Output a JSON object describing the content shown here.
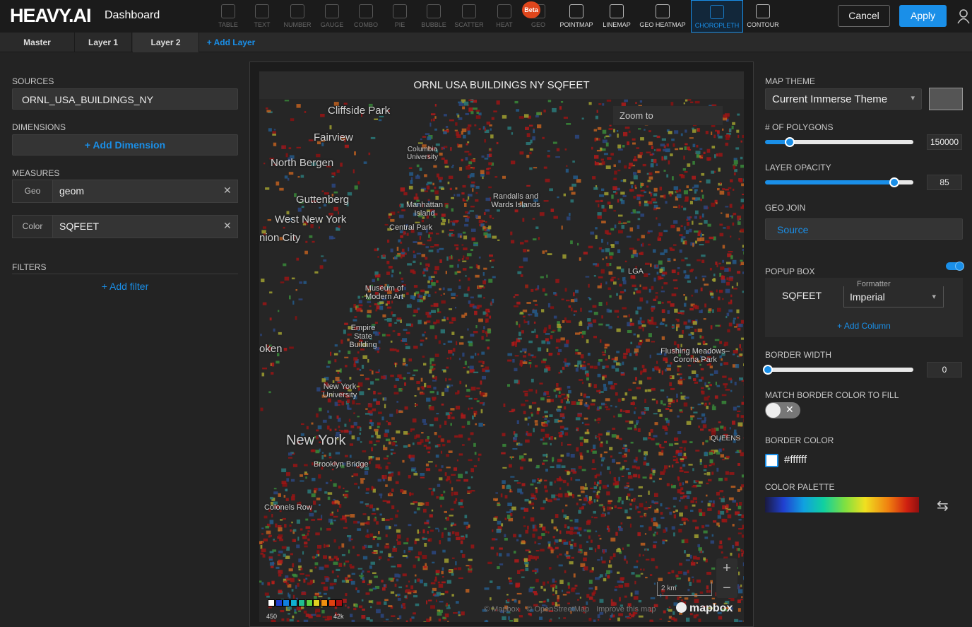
{
  "header": {
    "logo": "HEAVY.AI",
    "title": "Dashboard",
    "beta_badge": "Beta",
    "chart_types": [
      "TABLE",
      "TEXT",
      "NUMBER",
      "GAUGE",
      "COMBO",
      "PIE",
      "BUBBLE",
      "SCATTER",
      "HEAT",
      "GEO",
      "POINTMAP",
      "LINEMAP",
      "GEO HEATMAP",
      "CHOROPLETH",
      "CONTOUR"
    ],
    "cancel": "Cancel",
    "apply": "Apply"
  },
  "tabs": [
    "Master",
    "Layer 1",
    "Layer 2",
    "+ Add Layer"
  ],
  "left_panel": {
    "sources_label": "SOURCES",
    "source": "ORNL_USA_BUILDINGS_NY",
    "dimensions_label": "DIMENSIONS",
    "add_dimension": "+ Add Dimension",
    "measures_label": "MEASURES",
    "measures": [
      {
        "key": "Geo",
        "value": "geom"
      },
      {
        "key": "Color",
        "value": "SQFEET"
      }
    ],
    "filters_label": "FILTERS",
    "add_filter": "+ Add filter"
  },
  "map": {
    "title": "ORNL USA BUILDINGS NY SQFEET",
    "zoom_to": "Zoom to",
    "labels": [
      "Cliffside Park",
      "Fairview",
      "North Bergen",
      "Columbia University",
      "Guttenberg",
      "West New York",
      "Randalls and Wards Islands",
      "Manhattan Island",
      "Central Park",
      "nion City",
      "LGA",
      "Museum of Modern Art",
      "Empire State Building",
      "oken",
      "Flushing Meadows–Corona Park",
      "New York University",
      "QUEENS",
      "New York",
      "Brooklyn Bridge",
      "Colonels Row"
    ],
    "legend_min": "450",
    "legend_max": "42k",
    "scale": "2 km",
    "attribution": [
      "© Mapbox",
      "© OpenStreetMap",
      "Improve this map"
    ],
    "mapbox": "mapbox"
  },
  "right_panel": {
    "map_theme_label": "MAP THEME",
    "map_theme": "Current Immerse Theme",
    "polygons_label": "# OF POLYGONS",
    "polygons": 150000,
    "opacity_label": "LAYER OPACITY",
    "opacity": 85,
    "geo_join_label": "GEO JOIN",
    "geo_join": "Source",
    "popup_label": "POPUP BOX",
    "formatter_label": "Formatter",
    "popup_column": "SQFEET",
    "formatter": "Imperial",
    "add_column": "+ Add Column",
    "border_width_label": "BORDER WIDTH",
    "border_width": 0,
    "match_border_label": "MATCH BORDER COLOR TO FILL",
    "border_color_label": "BORDER COLOR",
    "border_color": "#ffffff",
    "palette_label": "COLOR PALETTE"
  }
}
